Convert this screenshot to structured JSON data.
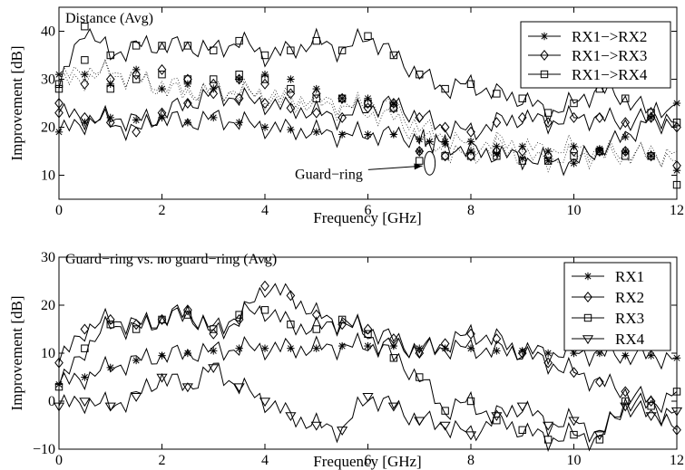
{
  "chart_data": [
    {
      "type": "line",
      "title": "Distance (Avg)",
      "xlabel": "Frequency [GHz]",
      "ylabel": "Improvement [dB]",
      "xlim": [
        0,
        12
      ],
      "ylim": [
        5,
        45
      ],
      "xticks": [
        0,
        2,
        4,
        6,
        8,
        10,
        12
      ],
      "yticks": [
        10,
        20,
        30,
        40
      ],
      "grid": false,
      "legend_position": "top-right",
      "annotation": {
        "text": "Guard−ring",
        "x": 7.2,
        "y": 12.5,
        "text_x": 5.9,
        "text_y": 10.4
      },
      "series": [
        {
          "name": "RX1−>RX2",
          "marker": "star",
          "x": [
            0,
            0.5,
            1,
            1.5,
            2,
            2.5,
            3,
            3.5,
            4,
            4.5,
            5,
            5.5,
            6,
            6.5,
            7,
            7.2,
            7.5,
            8,
            8.5,
            9,
            9.5,
            10,
            10.5,
            11,
            11.5,
            12
          ],
          "values": [
            19,
            21,
            22,
            21.5,
            22,
            21,
            22,
            21,
            20,
            19.5,
            19,
            18.5,
            18.5,
            18.5,
            17.5,
            17,
            16.5,
            15,
            14.5,
            13.5,
            13,
            12.5,
            15.5,
            18,
            22,
            25
          ]
        },
        {
          "name": "RX1−>RX3",
          "marker": "diamond",
          "x": [
            0,
            0.5,
            1,
            1.5,
            2,
            2.5,
            3,
            3.5,
            4,
            4.5,
            5,
            5.5,
            6,
            6.5,
            7,
            7.5,
            8,
            8.5,
            9,
            9.5,
            10,
            10.5,
            11,
            11.5,
            12
          ],
          "values": [
            23,
            22,
            21,
            19,
            23,
            25,
            27,
            26,
            25,
            24,
            23,
            22,
            24,
            25,
            22,
            20,
            19,
            21,
            22,
            21,
            22,
            22,
            21,
            22,
            20
          ]
        },
        {
          "name": "RX1−>RX4",
          "marker": "square",
          "x": [
            0,
            0.5,
            1,
            1.5,
            2,
            2.5,
            3,
            3.5,
            4,
            4.5,
            5,
            5.5,
            6,
            6.5,
            7,
            7.5,
            8,
            8.5,
            9,
            9.5,
            10,
            10.5,
            11,
            11.5,
            12
          ],
          "values": [
            28,
            41,
            35,
            37,
            37,
            37,
            36,
            38,
            35,
            36,
            38,
            36,
            39,
            35,
            31,
            28,
            29,
            27,
            26,
            23,
            25,
            28,
            26,
            23,
            21
          ]
        }
      ],
      "spread_series": {
        "x": [
          0,
          0.5,
          1,
          1.5,
          2,
          2.5,
          3,
          3.5,
          4,
          4.5,
          5,
          5.5,
          6,
          6.5,
          7,
          7.5,
          8,
          8.5,
          9,
          9.5,
          10,
          10.5,
          11,
          11.5,
          12
        ],
        "series_a": [
          30,
          32,
          31,
          30,
          29,
          28,
          27,
          28,
          26,
          25,
          25,
          24,
          25,
          24,
          20,
          18,
          16,
          17,
          16,
          15,
          16,
          15,
          15,
          14,
          15
        ],
        "series_b": [
          29,
          30,
          32,
          30,
          28,
          27,
          28,
          27,
          27,
          26,
          26,
          25,
          23,
          22,
          18,
          15,
          14,
          16,
          14,
          13,
          14,
          14,
          14,
          15,
          13
        ],
        "marks_star": [
          31,
          31,
          29,
          32,
          28,
          29,
          28,
          30,
          31,
          30,
          28,
          26,
          26,
          25,
          15,
          17,
          17,
          16,
          16,
          15,
          16,
          15,
          15,
          14,
          11
        ],
        "marks_diamond": [
          25,
          29,
          30,
          31,
          32,
          30,
          29,
          30,
          29,
          27,
          27,
          26,
          25,
          24,
          15,
          14,
          14,
          15,
          15,
          14,
          15,
          15,
          15,
          14,
          12
        ],
        "marks_square": [
          29,
          34,
          28,
          30,
          31,
          30,
          30,
          31,
          30,
          28,
          26,
          26,
          25,
          24,
          13,
          14,
          14,
          14,
          13,
          13,
          14,
          15,
          14,
          14,
          8
        ]
      }
    },
    {
      "type": "line",
      "title": "Guard−ring vs. no guard−ring (Avg)",
      "xlabel": "Frequency [GHz]",
      "ylabel": "Improvement [dB]",
      "xlim": [
        0,
        12
      ],
      "ylim": [
        -10,
        30
      ],
      "xticks": [
        0,
        2,
        4,
        6,
        8,
        10,
        12
      ],
      "yticks": [
        -10,
        0,
        10,
        20,
        30
      ],
      "grid": false,
      "legend_position": "top-right",
      "series": [
        {
          "name": "RX1",
          "marker": "star",
          "x": [
            0,
            0.5,
            1,
            1.5,
            2,
            2.5,
            3,
            3.5,
            4,
            4.5,
            5,
            5.5,
            6,
            6.5,
            7,
            7.5,
            8,
            8.5,
            9,
            9.5,
            10,
            10.5,
            11,
            11.5,
            12
          ],
          "values": [
            3.5,
            5,
            7,
            8.5,
            9.5,
            10,
            10.5,
            11,
            11,
            11,
            11,
            11.5,
            11.5,
            11.5,
            11,
            11,
            11,
            10.5,
            10.5,
            10,
            10,
            10,
            9.5,
            9.5,
            9
          ]
        },
        {
          "name": "RX2",
          "marker": "diamond",
          "x": [
            0,
            0.5,
            1,
            1.5,
            2,
            2.5,
            3,
            3.5,
            4,
            4.5,
            5,
            5.5,
            6,
            6.5,
            7,
            7.5,
            8,
            8.5,
            9,
            9.5,
            10,
            10.5,
            11,
            11.5,
            12
          ],
          "values": [
            8,
            15,
            17,
            16,
            17,
            19,
            14,
            17,
            24,
            22,
            18,
            16,
            15,
            13,
            10,
            12,
            14,
            13,
            10,
            8,
            6,
            4,
            2,
            0,
            -6
          ]
        },
        {
          "name": "RX3",
          "marker": "square",
          "x": [
            0,
            0.5,
            1,
            1.5,
            2,
            2.5,
            3,
            3.5,
            4,
            4.5,
            5,
            5.5,
            6,
            6.5,
            7,
            7.5,
            8,
            8.5,
            9,
            9.5,
            10,
            10.5,
            11,
            11.5,
            12
          ],
          "values": [
            3,
            11,
            16,
            15,
            17,
            18,
            15,
            18,
            19,
            16,
            15,
            17,
            14,
            9,
            5,
            -2,
            0,
            -4,
            -6,
            -8,
            -7,
            -8,
            0,
            -1,
            2
          ]
        },
        {
          "name": "RX4",
          "marker": "triangle-down",
          "x": [
            0,
            0.5,
            1,
            1.5,
            2,
            2.5,
            3,
            3.5,
            4,
            4.5,
            5,
            5.5,
            6,
            6.5,
            7,
            7.5,
            8,
            8.5,
            9,
            9.5,
            10,
            10.5,
            11,
            11.5,
            12
          ],
          "values": [
            -1,
            0,
            -1,
            1,
            5,
            3,
            7,
            3,
            0,
            -3,
            -5,
            -6,
            1,
            -1,
            -4,
            -5,
            -7,
            -3,
            -1,
            -5,
            -4,
            -7,
            -1,
            -3,
            -2
          ]
        }
      ]
    }
  ]
}
